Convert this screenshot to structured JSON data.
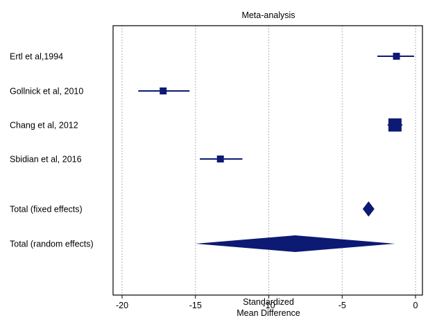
{
  "chart_data": {
    "type": "forest",
    "title": "Meta-analysis",
    "xlabel_line1": "Standardized",
    "xlabel_line2": "Mean Difference",
    "xlim": [
      -20.5,
      0.5
    ],
    "ticks": [
      -20,
      -15,
      -10,
      -5,
      0
    ],
    "tick_labels": [
      "-20",
      "-15",
      "-10",
      "-5",
      "0"
    ],
    "grid": "vertical dotted at ticks",
    "colors": {
      "marker": "#0d1a73",
      "axis": "#000000",
      "grid": "#999999"
    },
    "studies": [
      {
        "label": "Ertl et al,1994",
        "estimate": -1.3,
        "ci_low": -2.6,
        "ci_high": -0.1,
        "weight": "small"
      },
      {
        "label": "Gollnick et al, 2010",
        "estimate": -17.2,
        "ci_low": -18.9,
        "ci_high": -15.4,
        "weight": "small"
      },
      {
        "label": "Chang et al, 2012",
        "estimate": -1.4,
        "ci_low": -1.9,
        "ci_high": -0.9,
        "weight": "large"
      },
      {
        "label": "Sbidian et al, 2016",
        "estimate": -13.3,
        "ci_low": -14.7,
        "ci_high": -11.8,
        "weight": "small"
      }
    ],
    "totals": [
      {
        "label": "Total (fixed effects)",
        "estimate": -3.2,
        "ci_low": -3.6,
        "ci_high": -2.8
      },
      {
        "label": "Total (random effects)",
        "estimate": -8.2,
        "ci_low": -15.0,
        "ci_high": -1.4
      }
    ]
  }
}
